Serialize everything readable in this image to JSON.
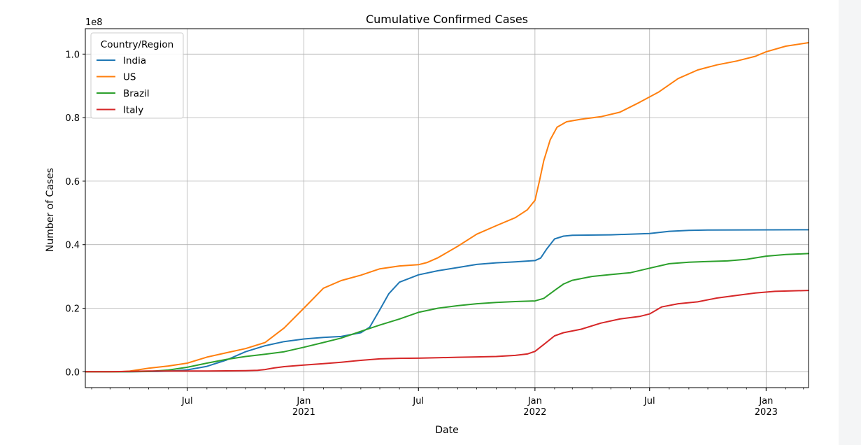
{
  "chart_data": {
    "type": "line",
    "title": "Cumulative Confirmed Cases",
    "xlabel": "Date",
    "ylabel": "Number of Cases",
    "y_offset_label": "1e8",
    "y_scale": 100000000,
    "xlim": [
      "2020-01-22",
      "2023-03-09"
    ],
    "ylim": [
      -5000000,
      108000000
    ],
    "grid": true,
    "legend": {
      "title": "Country/Region",
      "position": "top-left"
    },
    "x_ticks": [
      {
        "date": "2020-07-01",
        "label": "Jul",
        "year": ""
      },
      {
        "date": "2021-01-01",
        "label": "Jan",
        "year": "2021"
      },
      {
        "date": "2021-07-01",
        "label": "Jul",
        "year": ""
      },
      {
        "date": "2022-01-01",
        "label": "Jan",
        "year": "2022"
      },
      {
        "date": "2022-07-01",
        "label": "Jul",
        "year": ""
      },
      {
        "date": "2023-01-01",
        "label": "Jan",
        "year": "2023"
      }
    ],
    "y_ticks": [
      {
        "value": 0,
        "label": "0.0"
      },
      {
        "value": 20000000,
        "label": "0.2"
      },
      {
        "value": 40000000,
        "label": "0.4"
      },
      {
        "value": 60000000,
        "label": "0.6"
      },
      {
        "value": 80000000,
        "label": "0.8"
      },
      {
        "value": 100000000,
        "label": "1.0"
      }
    ],
    "series": [
      {
        "name": "India",
        "color": "#1f77b4",
        "points": [
          [
            "2020-01-22",
            0
          ],
          [
            "2020-04-01",
            0
          ],
          [
            "2020-05-15",
            90000
          ],
          [
            "2020-06-15",
            330000
          ],
          [
            "2020-07-01",
            600000
          ],
          [
            "2020-08-01",
            1700000
          ],
          [
            "2020-09-01",
            3700000
          ],
          [
            "2020-10-01",
            6300000
          ],
          [
            "2020-11-01",
            8200000
          ],
          [
            "2020-12-01",
            9500000
          ],
          [
            "2021-01-01",
            10300000
          ],
          [
            "2021-02-01",
            10800000
          ],
          [
            "2021-03-01",
            11100000
          ],
          [
            "2021-04-01",
            12300000
          ],
          [
            "2021-04-15",
            14000000
          ],
          [
            "2021-05-01",
            19500000
          ],
          [
            "2021-05-15",
            24500000
          ],
          [
            "2021-06-01",
            28200000
          ],
          [
            "2021-07-01",
            30500000
          ],
          [
            "2021-08-01",
            31800000
          ],
          [
            "2021-09-01",
            32800000
          ],
          [
            "2021-10-01",
            33800000
          ],
          [
            "2021-11-01",
            34300000
          ],
          [
            "2021-12-01",
            34600000
          ],
          [
            "2022-01-01",
            35000000
          ],
          [
            "2022-01-10",
            35800000
          ],
          [
            "2022-01-20",
            38800000
          ],
          [
            "2022-02-01",
            41800000
          ],
          [
            "2022-02-15",
            42700000
          ],
          [
            "2022-03-01",
            42950000
          ],
          [
            "2022-05-01",
            43100000
          ],
          [
            "2022-07-01",
            43500000
          ],
          [
            "2022-08-01",
            44200000
          ],
          [
            "2022-09-01",
            44500000
          ],
          [
            "2022-10-01",
            44600000
          ],
          [
            "2023-03-09",
            44700000
          ]
        ]
      },
      {
        "name": "US",
        "color": "#ff7f0e",
        "points": [
          [
            "2020-01-22",
            0
          ],
          [
            "2020-03-15",
            3500
          ],
          [
            "2020-04-01",
            200000
          ],
          [
            "2020-05-01",
            1100000
          ],
          [
            "2020-06-01",
            1800000
          ],
          [
            "2020-07-01",
            2700000
          ],
          [
            "2020-08-01",
            4600000
          ],
          [
            "2020-09-01",
            6000000
          ],
          [
            "2020-10-01",
            7300000
          ],
          [
            "2020-11-01",
            9200000
          ],
          [
            "2020-12-01",
            13800000
          ],
          [
            "2021-01-01",
            20000000
          ],
          [
            "2021-02-01",
            26300000
          ],
          [
            "2021-03-01",
            28700000
          ],
          [
            "2021-04-01",
            30400000
          ],
          [
            "2021-05-01",
            32400000
          ],
          [
            "2021-06-01",
            33300000
          ],
          [
            "2021-07-01",
            33700000
          ],
          [
            "2021-07-15",
            34400000
          ],
          [
            "2021-08-01",
            35900000
          ],
          [
            "2021-09-01",
            39500000
          ],
          [
            "2021-10-01",
            43300000
          ],
          [
            "2021-11-01",
            46000000
          ],
          [
            "2021-12-01",
            48500000
          ],
          [
            "2021-12-20",
            51000000
          ],
          [
            "2022-01-01",
            54000000
          ],
          [
            "2022-01-08",
            60000000
          ],
          [
            "2022-01-15",
            66500000
          ],
          [
            "2022-01-25",
            73000000
          ],
          [
            "2022-02-05",
            77000000
          ],
          [
            "2022-02-20",
            78700000
          ],
          [
            "2022-03-15",
            79500000
          ],
          [
            "2022-04-15",
            80300000
          ],
          [
            "2022-05-15",
            81700000
          ],
          [
            "2022-06-15",
            84800000
          ],
          [
            "2022-07-15",
            88000000
          ],
          [
            "2022-08-15",
            92300000
          ],
          [
            "2022-09-15",
            95000000
          ],
          [
            "2022-10-15",
            96600000
          ],
          [
            "2022-11-15",
            97800000
          ],
          [
            "2022-12-15",
            99300000
          ],
          [
            "2023-01-01",
            100700000
          ],
          [
            "2023-02-01",
            102500000
          ],
          [
            "2023-03-09",
            103600000
          ]
        ]
      },
      {
        "name": "Brazil",
        "color": "#2ca02c",
        "points": [
          [
            "2020-01-22",
            0
          ],
          [
            "2020-04-01",
            5000
          ],
          [
            "2020-05-01",
            90000
          ],
          [
            "2020-06-01",
            520000
          ],
          [
            "2020-07-01",
            1400000
          ],
          [
            "2020-08-01",
            2700000
          ],
          [
            "2020-09-01",
            3900000
          ],
          [
            "2020-10-01",
            4800000
          ],
          [
            "2020-11-01",
            5500000
          ],
          [
            "2020-12-01",
            6300000
          ],
          [
            "2021-01-01",
            7700000
          ],
          [
            "2021-02-01",
            9200000
          ],
          [
            "2021-03-01",
            10600000
          ],
          [
            "2021-04-01",
            12700000
          ],
          [
            "2021-05-01",
            14700000
          ],
          [
            "2021-06-01",
            16600000
          ],
          [
            "2021-07-01",
            18700000
          ],
          [
            "2021-08-01",
            20000000
          ],
          [
            "2021-09-01",
            20800000
          ],
          [
            "2021-10-01",
            21400000
          ],
          [
            "2021-11-01",
            21800000
          ],
          [
            "2021-12-01",
            22100000
          ],
          [
            "2022-01-01",
            22300000
          ],
          [
            "2022-01-15",
            23100000
          ],
          [
            "2022-02-01",
            25600000
          ],
          [
            "2022-02-15",
            27600000
          ],
          [
            "2022-03-01",
            28800000
          ],
          [
            "2022-04-01",
            30000000
          ],
          [
            "2022-05-01",
            30600000
          ],
          [
            "2022-06-01",
            31200000
          ],
          [
            "2022-07-01",
            32600000
          ],
          [
            "2022-08-01",
            34000000
          ],
          [
            "2022-09-01",
            34500000
          ],
          [
            "2022-10-01",
            34700000
          ],
          [
            "2022-11-01",
            34900000
          ],
          [
            "2022-12-01",
            35400000
          ],
          [
            "2023-01-01",
            36400000
          ],
          [
            "2023-02-01",
            36900000
          ],
          [
            "2023-03-09",
            37200000
          ]
        ]
      },
      {
        "name": "Italy",
        "color": "#d62728",
        "points": [
          [
            "2020-01-22",
            0
          ],
          [
            "2020-03-01",
            1700
          ],
          [
            "2020-04-01",
            110000
          ],
          [
            "2020-05-01",
            210000
          ],
          [
            "2020-08-01",
            250000
          ],
          [
            "2020-10-01",
            330000
          ],
          [
            "2020-10-20",
            430000
          ],
          [
            "2020-11-01",
            700000
          ],
          [
            "2020-11-15",
            1200000
          ],
          [
            "2020-12-01",
            1600000
          ],
          [
            "2021-01-01",
            2100000
          ],
          [
            "2021-02-01",
            2550000
          ],
          [
            "2021-03-01",
            3000000
          ],
          [
            "2021-04-01",
            3600000
          ],
          [
            "2021-05-01",
            4050000
          ],
          [
            "2021-06-01",
            4220000
          ],
          [
            "2021-07-01",
            4270000
          ],
          [
            "2021-08-01",
            4400000
          ],
          [
            "2021-09-01",
            4560000
          ],
          [
            "2021-10-01",
            4680000
          ],
          [
            "2021-11-01",
            4800000
          ],
          [
            "2021-12-01",
            5150000
          ],
          [
            "2021-12-20",
            5600000
          ],
          [
            "2022-01-01",
            6400000
          ],
          [
            "2022-01-15",
            8600000
          ],
          [
            "2022-02-01",
            11300000
          ],
          [
            "2022-02-15",
            12300000
          ],
          [
            "2022-03-15",
            13400000
          ],
          [
            "2022-04-15",
            15300000
          ],
          [
            "2022-05-15",
            16600000
          ],
          [
            "2022-06-15",
            17400000
          ],
          [
            "2022-07-01",
            18200000
          ],
          [
            "2022-07-20",
            20400000
          ],
          [
            "2022-08-15",
            21400000
          ],
          [
            "2022-09-15",
            22000000
          ],
          [
            "2022-10-15",
            23200000
          ],
          [
            "2022-11-15",
            24000000
          ],
          [
            "2022-12-15",
            24800000
          ],
          [
            "2023-01-15",
            25300000
          ],
          [
            "2023-03-09",
            25600000
          ]
        ]
      }
    ]
  }
}
